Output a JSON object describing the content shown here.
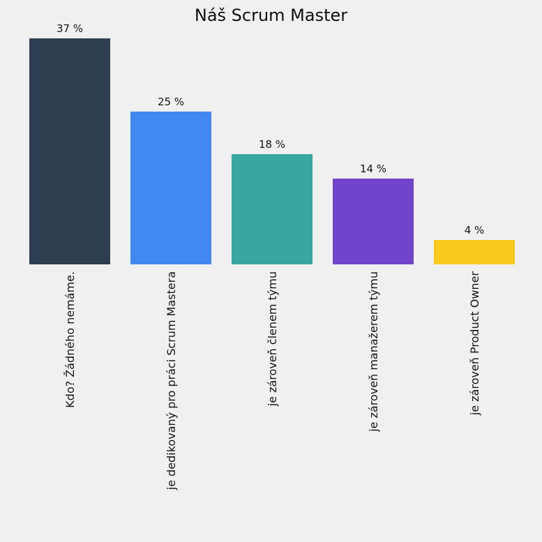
{
  "chart_data": {
    "type": "bar",
    "title": "Náš Scrum Master",
    "categories": [
      "Kdo? Žádného nemáme.",
      "je dedikovaný pro práci Scrum Mastera",
      "je zároveň členem týmu",
      "je zároveň manažerem týmu",
      "je zároveň Product Owner"
    ],
    "values": [
      37,
      25,
      18,
      14,
      4
    ],
    "value_labels": [
      "37 %",
      "25 %",
      "18 %",
      "14 %",
      "4 %"
    ],
    "bar_colors": [
      "#2d3e50",
      "#4189f0",
      "#3aa6a2",
      "#7243cb",
      "#f9c91e"
    ],
    "background_color": "#f0f0f0",
    "xlabel": "",
    "ylabel": "",
    "ylim": [
      0,
      43
    ],
    "grid": false,
    "legend": "none",
    "value_label_position": "above-bar",
    "category_label_rotation": 90
  }
}
